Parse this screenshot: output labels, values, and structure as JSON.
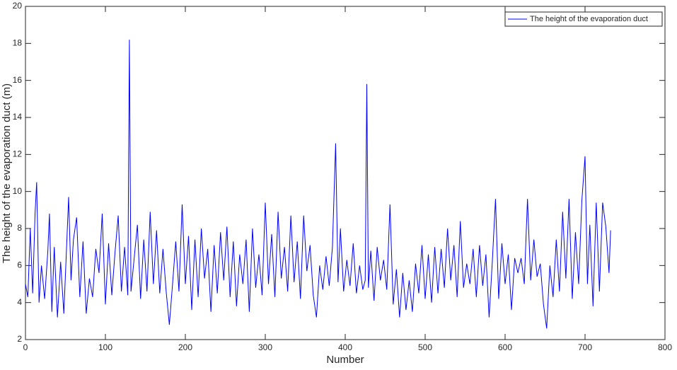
{
  "chart_data": {
    "type": "line",
    "xlabel": "Number",
    "ylabel": "The height of the evaporation duct (m)",
    "xlim": [
      0,
      800
    ],
    "ylim": [
      2,
      20
    ],
    "xticks": [
      0,
      100,
      200,
      300,
      400,
      500,
      600,
      700,
      800
    ],
    "yticks": [
      2,
      4,
      6,
      8,
      10,
      12,
      14,
      16,
      18,
      20
    ],
    "legend_position": "upper right",
    "x": [
      0,
      3,
      6,
      9,
      12,
      14,
      17,
      20,
      24,
      28,
      30,
      33,
      36,
      40,
      44,
      48,
      52,
      54,
      57,
      60,
      64,
      68,
      72,
      76,
      80,
      84,
      88,
      92,
      96,
      100,
      104,
      108,
      112,
      116,
      120,
      124,
      128,
      130,
      132,
      136,
      140,
      144,
      148,
      152,
      156,
      160,
      164,
      168,
      172,
      176,
      180,
      184,
      188,
      192,
      196,
      200,
      204,
      208,
      212,
      216,
      220,
      224,
      228,
      232,
      236,
      240,
      244,
      248,
      252,
      256,
      260,
      264,
      268,
      272,
      276,
      280,
      284,
      288,
      292,
      296,
      300,
      304,
      308,
      312,
      316,
      320,
      324,
      328,
      332,
      336,
      340,
      344,
      348,
      352,
      356,
      360,
      364,
      368,
      372,
      376,
      380,
      384,
      388,
      391,
      394,
      398,
      402,
      406,
      410,
      414,
      418,
      422,
      425,
      427,
      429,
      432,
      436,
      440,
      444,
      448,
      452,
      456,
      460,
      464,
      468,
      472,
      476,
      480,
      484,
      488,
      492,
      496,
      500,
      504,
      508,
      512,
      516,
      520,
      524,
      528,
      532,
      536,
      540,
      544,
      548,
      552,
      556,
      560,
      564,
      568,
      572,
      576,
      580,
      584,
      588,
      592,
      596,
      600,
      604,
      608,
      612,
      616,
      620,
      624,
      628,
      632,
      636,
      640,
      644,
      648,
      652,
      656,
      660,
      664,
      668,
      672,
      676,
      680,
      684,
      688,
      692,
      696,
      700,
      703,
      706,
      710,
      714,
      718,
      722,
      726,
      730,
      732
    ],
    "series": [
      {
        "name": "The height of the evaporation duct",
        "color": "#0000ff",
        "values": [
          5.0,
          4.3,
          8.0,
          4.5,
          8.8,
          10.5,
          4.0,
          6.0,
          4.2,
          6.8,
          8.8,
          3.5,
          7.0,
          3.2,
          6.2,
          3.4,
          7.6,
          9.7,
          5.2,
          7.4,
          8.6,
          4.3,
          7.3,
          3.4,
          5.3,
          4.3,
          6.9,
          5.6,
          8.8,
          3.9,
          7.2,
          4.4,
          6.7,
          8.7,
          4.6,
          7.0,
          4.4,
          18.2,
          4.6,
          6.4,
          8.2,
          4.2,
          7.4,
          4.6,
          8.9,
          5.0,
          7.9,
          4.5,
          6.9,
          4.6,
          2.8,
          5.0,
          7.3,
          4.6,
          9.3,
          5.0,
          7.6,
          3.6,
          7.4,
          4.3,
          8.0,
          5.3,
          6.9,
          3.5,
          7.1,
          4.5,
          7.8,
          5.2,
          8.1,
          4.3,
          7.3,
          3.8,
          6.6,
          5.0,
          7.4,
          3.5,
          8.0,
          4.8,
          6.6,
          4.4,
          9.4,
          5.0,
          7.7,
          4.3,
          8.9,
          5.3,
          7.0,
          4.6,
          8.7,
          5.1,
          7.3,
          4.2,
          8.7,
          5.7,
          7.1,
          4.4,
          3.2,
          6.0,
          4.7,
          6.5,
          4.9,
          7.0,
          12.6,
          5.1,
          8.0,
          4.6,
          6.3,
          4.9,
          7.2,
          4.5,
          6.0,
          4.7,
          5.2,
          15.8,
          4.8,
          6.8,
          4.1,
          7.0,
          5.2,
          6.3,
          4.7,
          9.3,
          3.9,
          5.8,
          3.2,
          5.6,
          3.6,
          5.2,
          3.5,
          6.1,
          4.5,
          7.1,
          4.2,
          6.6,
          4.0,
          7.0,
          4.5,
          6.9,
          4.8,
          8.0,
          5.2,
          7.1,
          4.3,
          8.4,
          4.8,
          6.1,
          5.0,
          6.9,
          4.3,
          7.1,
          4.9,
          6.6,
          3.2,
          6.2,
          9.6,
          4.2,
          7.2,
          5.0,
          6.6,
          3.6,
          6.4,
          5.6,
          6.4,
          5.0,
          9.6,
          5.2,
          7.4,
          5.4,
          6.1,
          3.9,
          2.6,
          6.0,
          4.3,
          7.4,
          4.6,
          8.9,
          5.3,
          9.6,
          4.2,
          7.8,
          5.0,
          9.5,
          11.9,
          5.0,
          8.2,
          3.8,
          9.4,
          4.6,
          9.4,
          8.1,
          5.6,
          7.9
        ]
      }
    ]
  }
}
